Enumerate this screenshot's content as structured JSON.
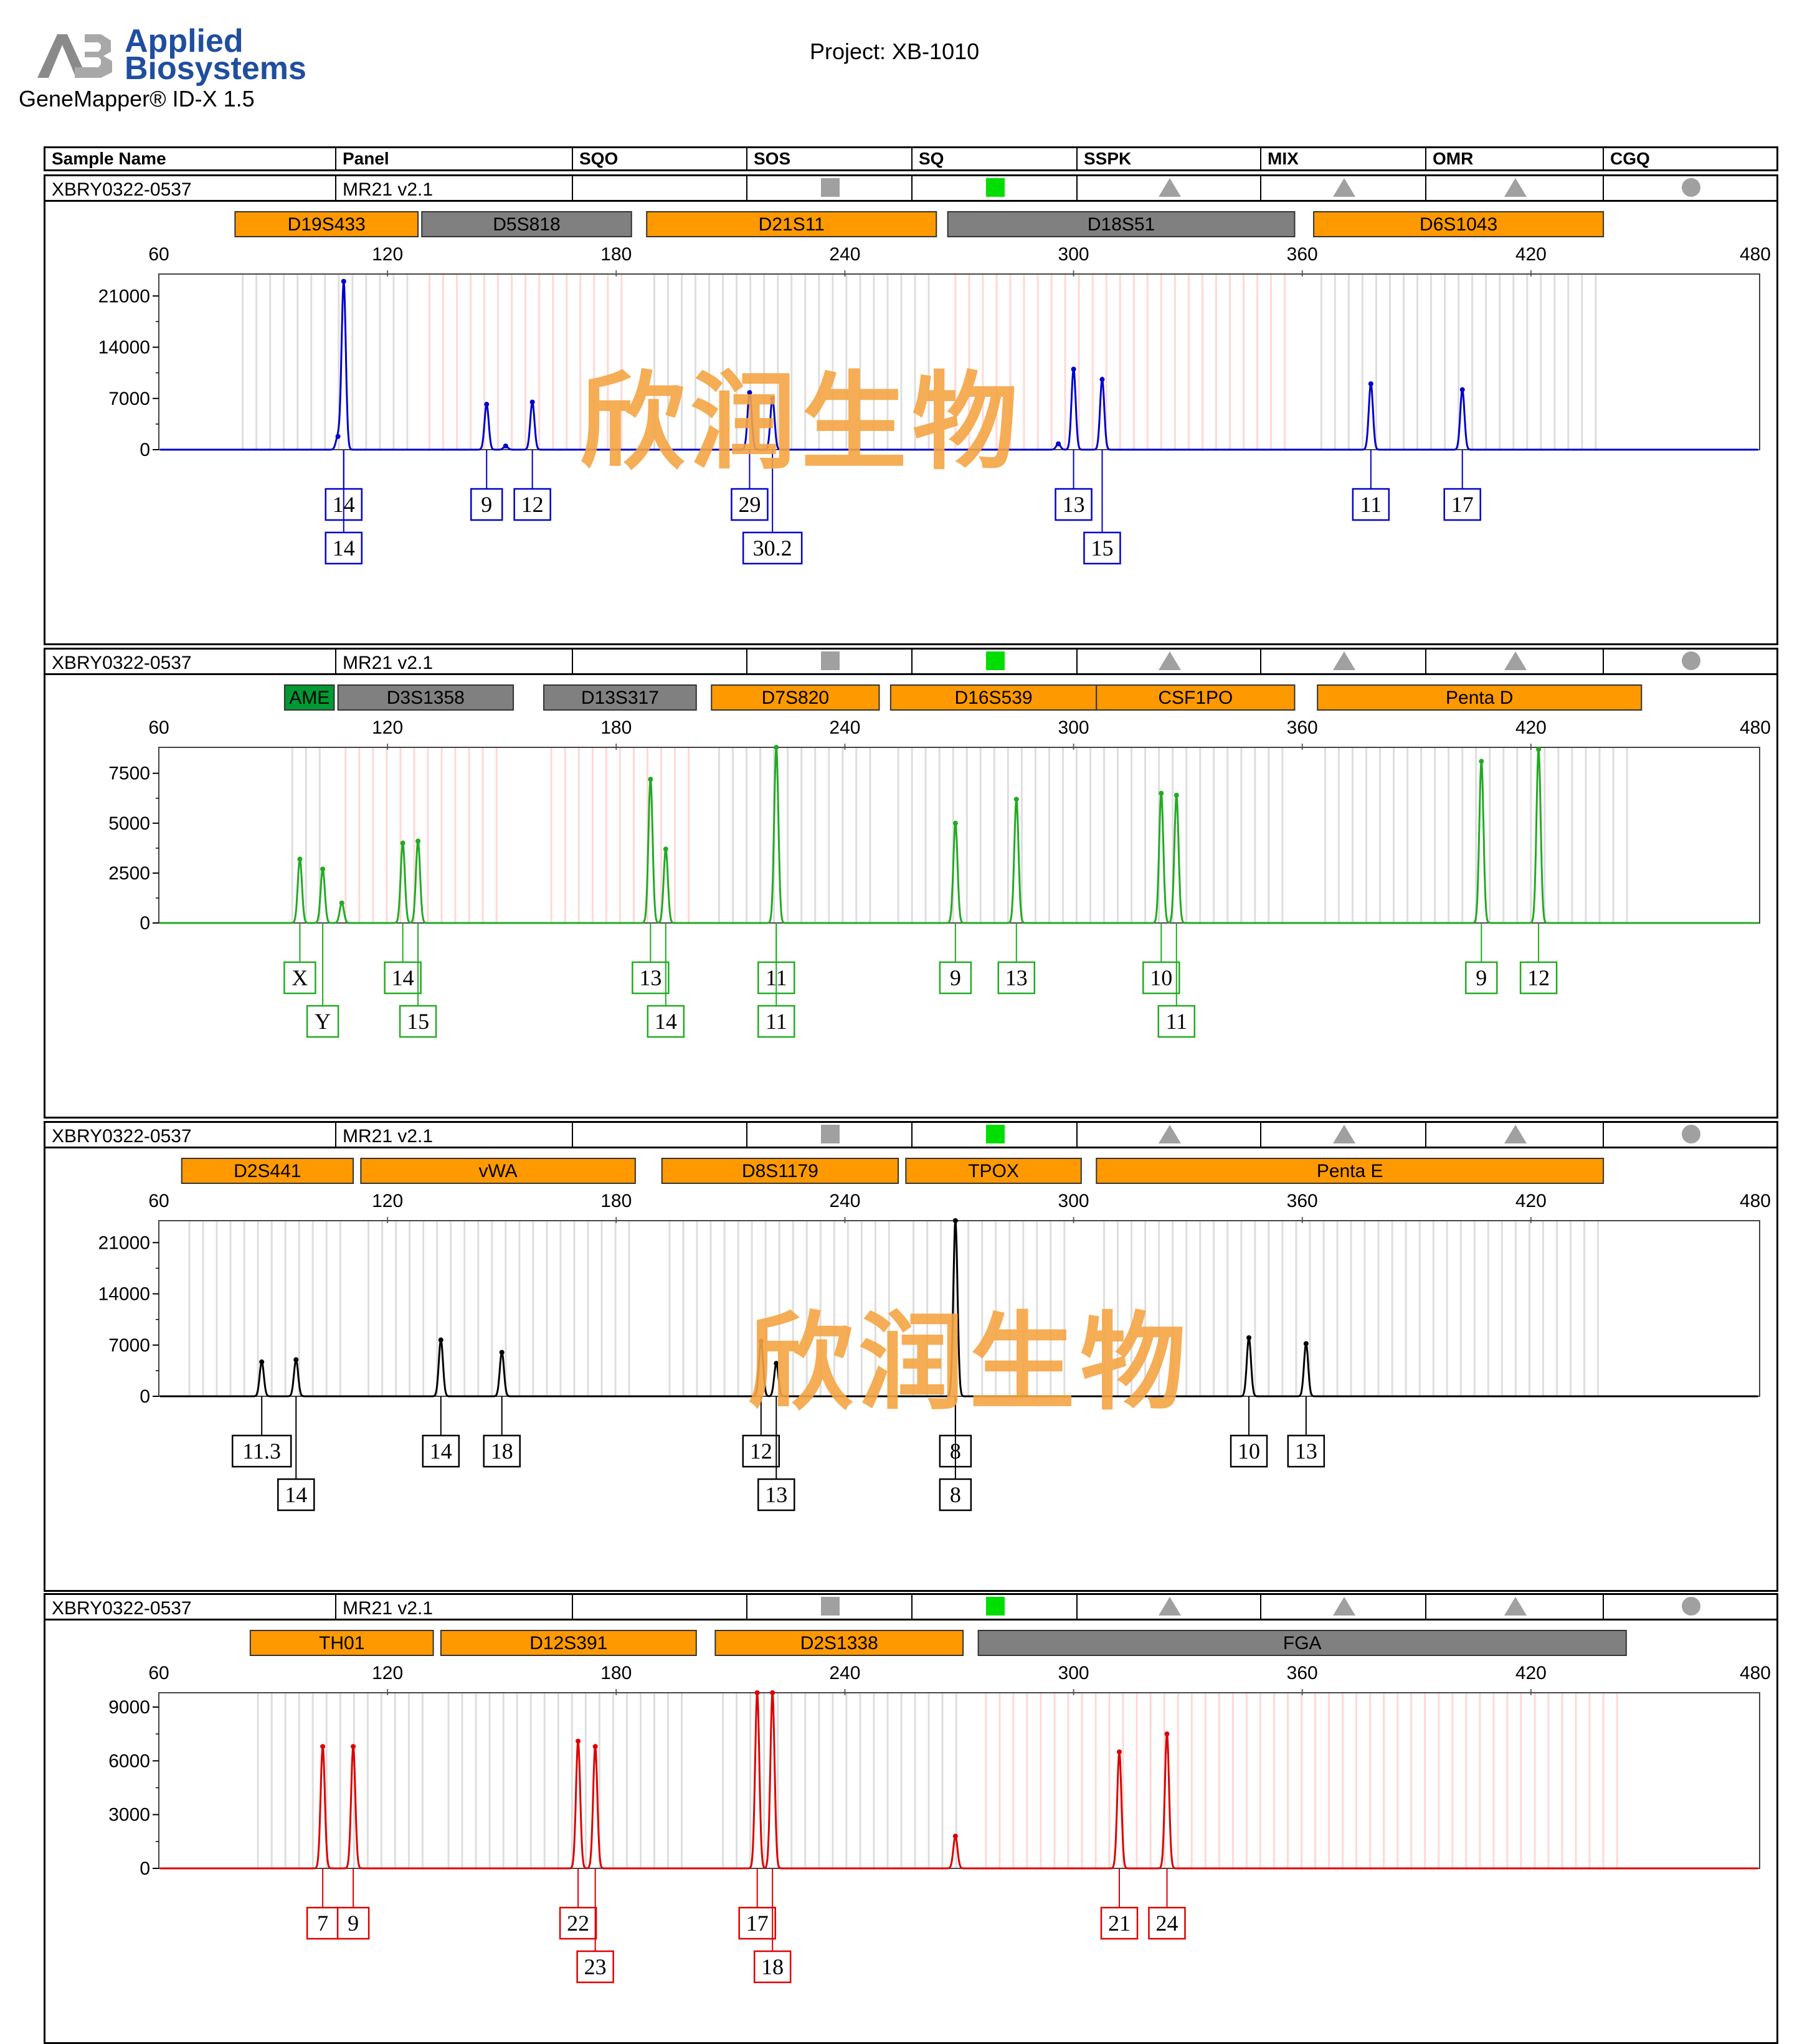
{
  "header": {
    "brand_line1": "Applied",
    "brand_line2": "Biosystems",
    "product": "GeneMapper® ID-X  1.5",
    "project": "Project: XB-1010"
  },
  "columns": [
    "Sample Name",
    "Panel",
    "SQO",
    "SOS",
    "SQ",
    "SSPK",
    "MIX",
    "OMR",
    "CGQ"
  ],
  "watermark": "欣润生物",
  "colors": {
    "locus_orange": "#ff9900",
    "locus_gray": "#808080",
    "locus_green": "#009933",
    "status_gray": "#a0a0a0",
    "status_green": "#00dd00",
    "blue": "#0000cc",
    "green": "#22aa22",
    "black": "#000000",
    "red": "#dd0000"
  },
  "panels": [
    {
      "sample_name": "XBRY0322-0537",
      "panel_name": "MR21  v2.1",
      "status": [
        "",
        "gray-square",
        "green-square",
        "gray-triangle",
        "gray-triangle",
        "gray-triangle",
        "gray-circle"
      ],
      "loci": [
        {
          "name": "D19S433",
          "start": 80,
          "end": 128,
          "color": "orange"
        },
        {
          "name": "D5S818",
          "start": 129,
          "end": 184,
          "color": "gray"
        },
        {
          "name": "D21S11",
          "start": 188,
          "end": 264,
          "color": "orange"
        },
        {
          "name": "D18S51",
          "start": 267,
          "end": 358,
          "color": "gray"
        },
        {
          "name": "D6S1043",
          "start": 363,
          "end": 439,
          "color": "orange"
        }
      ]
    },
    {
      "sample_name": "XBRY0322-0537",
      "panel_name": "MR21  v2.1",
      "status": [
        "",
        "gray-square",
        "green-square",
        "gray-triangle",
        "gray-triangle",
        "gray-triangle",
        "gray-circle"
      ],
      "loci": [
        {
          "name": "AME",
          "start": 93,
          "end": 106,
          "color": "green"
        },
        {
          "name": "D3S1358",
          "start": 107,
          "end": 153,
          "color": "gray"
        },
        {
          "name": "D13S317",
          "start": 161,
          "end": 201,
          "color": "gray"
        },
        {
          "name": "D7S820",
          "start": 205,
          "end": 249,
          "color": "orange"
        },
        {
          "name": "D16S539",
          "start": 252,
          "end": 306,
          "color": "orange"
        },
        {
          "name": "CSF1PO",
          "start": 306,
          "end": 358,
          "color": "orange"
        },
        {
          "name": "Penta D",
          "start": 364,
          "end": 449,
          "color": "orange"
        }
      ]
    },
    {
      "sample_name": "XBRY0322-0537",
      "panel_name": "MR21  v2.1",
      "status": [
        "",
        "gray-square",
        "green-square",
        "gray-triangle",
        "gray-triangle",
        "gray-triangle",
        "gray-circle"
      ],
      "loci": [
        {
          "name": "D2S441",
          "start": 66,
          "end": 111,
          "color": "orange"
        },
        {
          "name": "vWA",
          "start": 113,
          "end": 185,
          "color": "orange"
        },
        {
          "name": "D8S1179",
          "start": 192,
          "end": 254,
          "color": "orange"
        },
        {
          "name": "TPOX",
          "start": 256,
          "end": 302,
          "color": "orange"
        },
        {
          "name": "Penta E",
          "start": 306,
          "end": 439,
          "color": "orange"
        }
      ]
    },
    {
      "sample_name": "XBRY0322-0537",
      "panel_name": "MR21  v2.1",
      "status": [
        "",
        "gray-square",
        "green-square",
        "gray-triangle",
        "gray-triangle",
        "gray-triangle",
        "gray-circle"
      ],
      "loci": [
        {
          "name": "TH01",
          "start": 84,
          "end": 132,
          "color": "orange"
        },
        {
          "name": "D12S391",
          "start": 134,
          "end": 201,
          "color": "orange"
        },
        {
          "name": "D2S1338",
          "start": 206,
          "end": 271,
          "color": "orange"
        },
        {
          "name": "FGA",
          "start": 275,
          "end": 445,
          "color": "gray"
        }
      ]
    }
  ],
  "chart_data": [
    {
      "type": "line",
      "dye": "blue",
      "x_ticks": [
        60,
        120,
        180,
        240,
        300,
        360,
        420,
        480
      ],
      "xlim": [
        60,
        480
      ],
      "y_ticks": [
        0,
        7000,
        14000,
        21000
      ],
      "ylim": [
        0,
        24000
      ],
      "peaks": [
        {
          "x": 107,
          "y": 1800
        },
        {
          "x": 108.5,
          "y": 23000
        },
        {
          "x": 146,
          "y": 6200
        },
        {
          "x": 151,
          "y": 500
        },
        {
          "x": 158,
          "y": 6500
        },
        {
          "x": 215,
          "y": 7800
        },
        {
          "x": 221,
          "y": 7000
        },
        {
          "x": 296,
          "y": 800
        },
        {
          "x": 300,
          "y": 11000
        },
        {
          "x": 307.5,
          "y": 9600
        },
        {
          "x": 378,
          "y": 9000
        },
        {
          "x": 402,
          "y": 8200
        }
      ],
      "alleles": [
        {
          "x": 108.5,
          "row": 1,
          "label": "14"
        },
        {
          "x": 108.5,
          "row": 2,
          "label": "14"
        },
        {
          "x": 146,
          "row": 1,
          "label": "9"
        },
        {
          "x": 158,
          "row": 1,
          "label": "12"
        },
        {
          "x": 215,
          "row": 1,
          "label": "29"
        },
        {
          "x": 221,
          "row": 2,
          "label": "30.2"
        },
        {
          "x": 300,
          "row": 1,
          "label": "13"
        },
        {
          "x": 307.5,
          "row": 2,
          "label": "15"
        },
        {
          "x": 378,
          "row": 1,
          "label": "11"
        },
        {
          "x": 402,
          "row": 1,
          "label": "17"
        }
      ]
    },
    {
      "type": "line",
      "dye": "green",
      "x_ticks": [
        60,
        120,
        180,
        240,
        300,
        360,
        420,
        480
      ],
      "xlim": [
        60,
        480
      ],
      "y_ticks": [
        0,
        2500,
        5000,
        7500
      ],
      "ylim": [
        0,
        8800
      ],
      "peaks": [
        {
          "x": 97,
          "y": 3200
        },
        {
          "x": 103,
          "y": 2700
        },
        {
          "x": 108,
          "y": 1000
        },
        {
          "x": 124,
          "y": 4000
        },
        {
          "x": 128,
          "y": 4100
        },
        {
          "x": 189,
          "y": 7200
        },
        {
          "x": 193,
          "y": 3700
        },
        {
          "x": 222,
          "y": 8800
        },
        {
          "x": 269,
          "y": 5000
        },
        {
          "x": 285,
          "y": 6200
        },
        {
          "x": 323,
          "y": 6500
        },
        {
          "x": 327,
          "y": 6400
        },
        {
          "x": 407,
          "y": 8100
        },
        {
          "x": 422,
          "y": 8700
        }
      ],
      "alleles": [
        {
          "x": 97,
          "row": 1,
          "label": "X"
        },
        {
          "x": 103,
          "row": 2,
          "label": "Y"
        },
        {
          "x": 124,
          "row": 1,
          "label": "14"
        },
        {
          "x": 128,
          "row": 2,
          "label": "15"
        },
        {
          "x": 189,
          "row": 1,
          "label": "13"
        },
        {
          "x": 193,
          "row": 2,
          "label": "14"
        },
        {
          "x": 222,
          "row": 1,
          "label": "11"
        },
        {
          "x": 222,
          "row": 2,
          "label": "11"
        },
        {
          "x": 269,
          "row": 1,
          "label": "9"
        },
        {
          "x": 285,
          "row": 1,
          "label": "13"
        },
        {
          "x": 323,
          "row": 1,
          "label": "10"
        },
        {
          "x": 327,
          "row": 2,
          "label": "11"
        },
        {
          "x": 407,
          "row": 1,
          "label": "9"
        },
        {
          "x": 422,
          "row": 1,
          "label": "12"
        }
      ]
    },
    {
      "type": "line",
      "dye": "black",
      "x_ticks": [
        60,
        120,
        180,
        240,
        300,
        360,
        420,
        480
      ],
      "xlim": [
        60,
        480
      ],
      "y_ticks": [
        0,
        7000,
        14000,
        21000
      ],
      "ylim": [
        0,
        24000
      ],
      "peaks": [
        {
          "x": 87,
          "y": 4700
        },
        {
          "x": 96,
          "y": 5000
        },
        {
          "x": 134,
          "y": 7700
        },
        {
          "x": 150,
          "y": 6000
        },
        {
          "x": 218,
          "y": 7500
        },
        {
          "x": 222,
          "y": 4500
        },
        {
          "x": 269,
          "y": 24000
        },
        {
          "x": 346,
          "y": 8000
        },
        {
          "x": 361,
          "y": 7200
        }
      ],
      "alleles": [
        {
          "x": 87,
          "row": 1,
          "label": "11.3"
        },
        {
          "x": 96,
          "row": 2,
          "label": "14"
        },
        {
          "x": 134,
          "row": 1,
          "label": "14"
        },
        {
          "x": 150,
          "row": 1,
          "label": "18"
        },
        {
          "x": 218,
          "row": 1,
          "label": "12"
        },
        {
          "x": 222,
          "row": 2,
          "label": "13"
        },
        {
          "x": 269,
          "row": 1,
          "label": "8"
        },
        {
          "x": 269,
          "row": 2,
          "label": "8"
        },
        {
          "x": 346,
          "row": 1,
          "label": "10"
        },
        {
          "x": 361,
          "row": 1,
          "label": "13"
        }
      ]
    },
    {
      "type": "line",
      "dye": "red",
      "x_ticks": [
        60,
        120,
        180,
        240,
        300,
        360,
        420,
        480
      ],
      "xlim": [
        60,
        480
      ],
      "y_ticks": [
        0,
        3000,
        6000,
        9000
      ],
      "ylim": [
        0,
        9800
      ],
      "peaks": [
        {
          "x": 103,
          "y": 6800
        },
        {
          "x": 111,
          "y": 6800
        },
        {
          "x": 170,
          "y": 7100
        },
        {
          "x": 174.5,
          "y": 6800
        },
        {
          "x": 217,
          "y": 9800
        },
        {
          "x": 221,
          "y": 9800
        },
        {
          "x": 269,
          "y": 1800
        },
        {
          "x": 312,
          "y": 6500
        },
        {
          "x": 324.5,
          "y": 7500
        }
      ],
      "alleles": [
        {
          "x": 103,
          "row": 1,
          "label": "7"
        },
        {
          "x": 111,
          "row": 1,
          "label": "9"
        },
        {
          "x": 170,
          "row": 1,
          "label": "22"
        },
        {
          "x": 174.5,
          "row": 2,
          "label": "23"
        },
        {
          "x": 217,
          "row": 1,
          "label": "17"
        },
        {
          "x": 221,
          "row": 2,
          "label": "18"
        },
        {
          "x": 312,
          "row": 1,
          "label": "21"
        },
        {
          "x": 324.5,
          "row": 1,
          "label": "24"
        }
      ]
    }
  ]
}
